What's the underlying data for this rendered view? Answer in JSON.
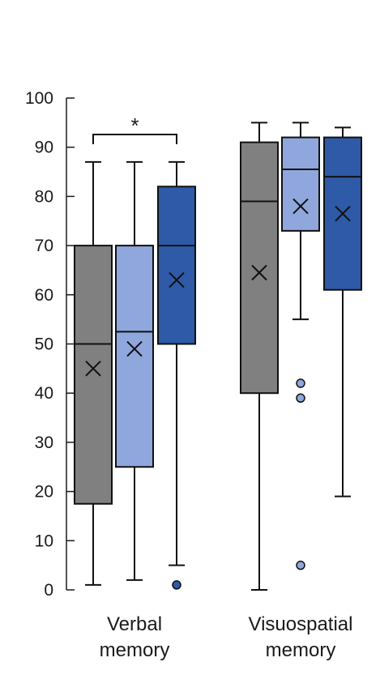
{
  "chart_data": {
    "type": "box",
    "title": "",
    "xlabel": "",
    "ylabel": "",
    "ylim": [
      0,
      100
    ],
    "yticks": [
      "0",
      "10",
      "20",
      "30",
      "40",
      "50",
      "60",
      "70",
      "80",
      "90",
      "100"
    ],
    "grid": false,
    "groups": [
      {
        "label_lines": [
          "Verbal",
          "memory"
        ],
        "significance": "*",
        "boxes": [
          {
            "min": 1,
            "q1": 17.5,
            "median": 50,
            "q3": 70,
            "max": 87,
            "mean": 45,
            "outliers": [],
            "color": "#808080"
          },
          {
            "min": 2,
            "q1": 25,
            "median": 52.5,
            "q3": 70,
            "max": 87,
            "mean": 49,
            "outliers": [],
            "color": "#8fa7dc"
          },
          {
            "min": 5,
            "q1": 50,
            "median": 70,
            "q3": 82,
            "max": 87,
            "mean": 63,
            "outliers": [
              1
            ],
            "color": "#2e5aa7"
          }
        ]
      },
      {
        "label_lines": [
          "Visuospatial",
          "memory"
        ],
        "significance": "",
        "boxes": [
          {
            "min": 0,
            "q1": 40,
            "median": 79,
            "q3": 91,
            "max": 95,
            "mean": 64.5,
            "outliers": [],
            "color": "#808080"
          },
          {
            "min": 55,
            "q1": 73,
            "median": 85.5,
            "q3": 92,
            "max": 95,
            "mean": 78,
            "outliers": [
              42,
              39,
              5
            ],
            "color": "#8fa7dc"
          },
          {
            "min": 19,
            "q1": 61,
            "median": 84,
            "q3": 92,
            "max": 94,
            "mean": 76.5,
            "outliers": [],
            "color": "#2e5aa7"
          }
        ]
      }
    ]
  }
}
